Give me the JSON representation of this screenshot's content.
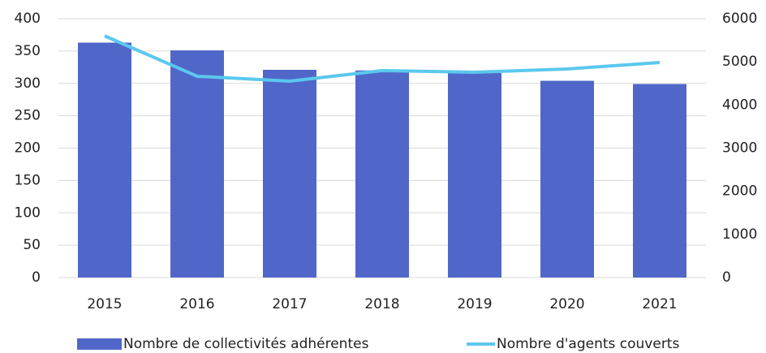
{
  "chart_data": {
    "type": "bar",
    "categories": [
      "2015",
      "2016",
      "2017",
      "2018",
      "2019",
      "2020",
      "2021"
    ],
    "series": [
      {
        "name": "Nombre de collectivités adhérentes",
        "type": "bar",
        "color": "#5067c9",
        "values": [
          363,
          351,
          321,
          320,
          316,
          304,
          299
        ]
      },
      {
        "name": "Nombre d'agents couverts",
        "type": "line",
        "axis": "y2",
        "color": "#5bc8ee",
        "values": [
          5600,
          4665,
          4552,
          4796,
          4759,
          4834,
          4984
        ]
      }
    ],
    "ylim": [
      0,
      400
    ],
    "yticks": [
      0,
      50,
      100,
      150,
      200,
      250,
      300,
      350,
      400
    ],
    "y2lim": [
      0,
      6000
    ],
    "y2ticks": [
      0,
      1000,
      2000,
      3000,
      4000,
      5000,
      6000
    ],
    "grid": true,
    "legend": "bottom"
  }
}
